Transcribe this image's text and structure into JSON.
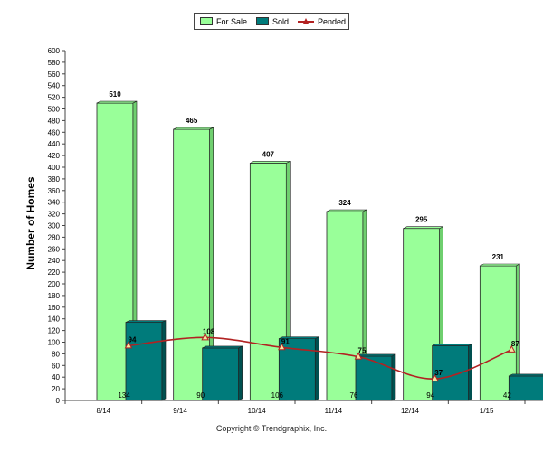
{
  "legend": {
    "for_sale": "For Sale",
    "sold": "Sold",
    "pended": "Pended"
  },
  "colors": {
    "for_sale": "#99ff99",
    "for_sale_side": "#6fcf6f",
    "sold": "#007b7b",
    "sold_side": "#005050",
    "pended": "#b22222"
  },
  "footer": {
    "copyright": "Copyright © Trendgraphix, Inc."
  },
  "chart_data": {
    "type": "bar",
    "title": "",
    "xlabel": "",
    "ylabel": "Number of Homes",
    "ylim": [
      0,
      600
    ],
    "ytick_step": 20,
    "categories": [
      "8/14",
      "9/14",
      "10/14",
      "11/14",
      "12/14",
      "1/15"
    ],
    "series": [
      {
        "name": "For Sale",
        "kind": "bar",
        "values": [
          510,
          465,
          407,
          324,
          295,
          231
        ]
      },
      {
        "name": "Sold",
        "kind": "bar",
        "values": [
          134,
          90,
          106,
          76,
          94,
          42
        ]
      },
      {
        "name": "Pended",
        "kind": "line",
        "values": [
          94,
          108,
          91,
          75,
          37,
          87
        ]
      }
    ]
  }
}
